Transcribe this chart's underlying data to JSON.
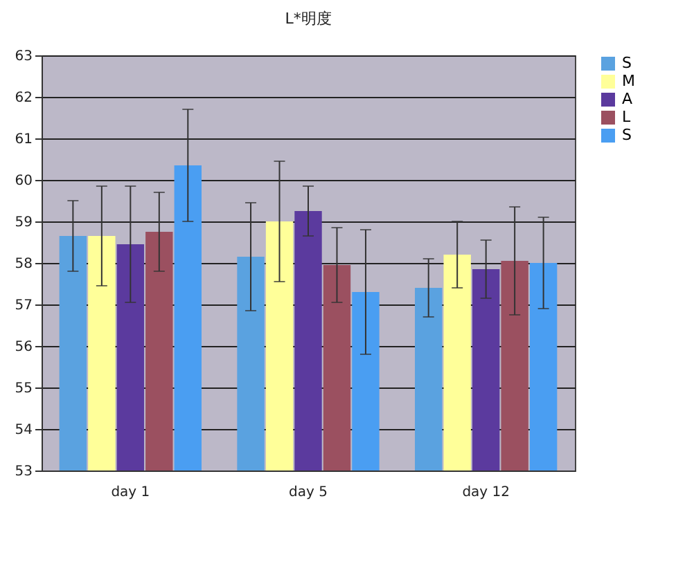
{
  "chart_data": {
    "type": "bar",
    "title": "L*明度",
    "categories": [
      "day 1",
      "day 5",
      "day 12"
    ],
    "series": [
      {
        "name": "S",
        "color": "#5aa2e0",
        "values": [
          58.65,
          58.15,
          57.4
        ],
        "errors": [
          0.85,
          1.3,
          0.7
        ]
      },
      {
        "name": "M",
        "color": "#ffff99",
        "values": [
          58.65,
          59.0,
          58.2
        ],
        "errors": [
          1.2,
          1.45,
          0.8
        ]
      },
      {
        "name": "A",
        "color": "#5b3a9e",
        "values": [
          58.45,
          59.25,
          57.85
        ],
        "errors": [
          1.4,
          0.6,
          0.7
        ]
      },
      {
        "name": "L",
        "color": "#9b5060",
        "values": [
          58.75,
          57.95,
          58.05
        ],
        "errors": [
          0.95,
          0.9,
          1.3
        ]
      },
      {
        "name": "S",
        "color": "#4a9ef2",
        "values": [
          60.35,
          57.3,
          58.0
        ],
        "errors": [
          1.35,
          1.5,
          1.1
        ]
      }
    ],
    "ylim": [
      53,
      63
    ],
    "yticks": [
      53,
      54,
      55,
      56,
      57,
      58,
      59,
      60,
      61,
      62,
      63
    ],
    "grid": "y",
    "legend": "right"
  }
}
